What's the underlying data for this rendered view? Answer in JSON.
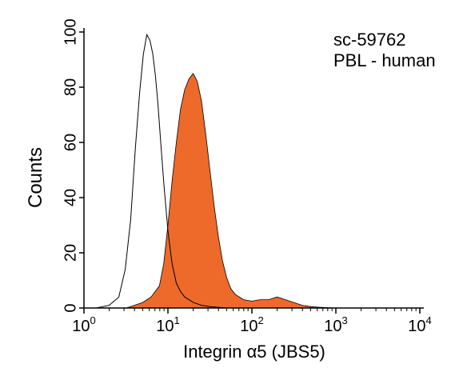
{
  "chart_data": {
    "type": "area",
    "title": "",
    "xlabel": "Integrin α5 (JBS5)",
    "ylabel": "Counts",
    "x_scale": "log",
    "xlim": [
      1,
      10000
    ],
    "ylim": [
      0,
      100
    ],
    "x_ticks": [
      {
        "base": "10",
        "exp": "0",
        "value": 1
      },
      {
        "base": "10",
        "exp": "1",
        "value": 10
      },
      {
        "base": "10",
        "exp": "2",
        "value": 100
      },
      {
        "base": "10",
        "exp": "3",
        "value": 1000
      },
      {
        "base": "10",
        "exp": "4",
        "value": 10000
      }
    ],
    "y_ticks": [
      "0",
      "20",
      "40",
      "60",
      "80",
      "100"
    ],
    "annotations": [
      "sc-59762",
      "PBL - human"
    ],
    "series": [
      {
        "style": "outline",
        "color": "#000000",
        "x": [
          1.4,
          2.0,
          2.6,
          3.1,
          3.6,
          4.1,
          4.6,
          5.1,
          5.6,
          6.1,
          6.6,
          7.1,
          7.6,
          8.3,
          9.0,
          10.0,
          11.2,
          12.6,
          14.1,
          15.8,
          17.8,
          20.0,
          25.1,
          31.6,
          50.0
        ],
        "y": [
          0,
          1,
          4,
          14,
          32,
          58,
          78,
          92,
          99,
          97,
          92,
          84,
          74,
          58,
          44,
          28,
          16,
          9,
          6,
          4,
          3,
          2,
          1,
          0.5,
          0
        ]
      },
      {
        "style": "filled",
        "color": "#ee6a2a",
        "x": [
          3.2,
          5.0,
          6.3,
          7.9,
          8.9,
          10.0,
          11.2,
          12.6,
          14.1,
          15.8,
          17.8,
          20.0,
          22.4,
          25.1,
          28.2,
          31.6,
          35.5,
          39.8,
          44.7,
          50.1,
          56.2,
          63.1,
          79.4,
          100,
          125.9,
          158.5,
          199.5,
          251.2,
          316.2,
          398.1,
          501.2,
          630.9,
          1000
        ],
        "y": [
          0,
          2,
          4,
          8,
          16,
          30,
          46,
          60,
          72,
          79,
          83,
          85,
          82,
          75,
          63,
          50,
          37,
          26,
          17,
          11,
          7,
          5,
          3,
          2.5,
          3,
          3,
          4,
          3,
          2,
          1,
          0.5,
          0.3,
          0
        ]
      }
    ]
  }
}
